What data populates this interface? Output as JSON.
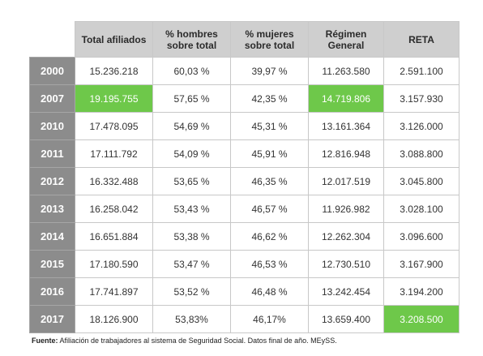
{
  "table": {
    "headers": [
      "Total afiliados",
      "% hombres\nsobre total",
      "% mujeres\nsobre total",
      "Régimen\nGeneral",
      "RETA"
    ],
    "rows": [
      {
        "year": "2000",
        "cells": [
          "15.236.218",
          "60,03 %",
          "39,97 %",
          "11.263.580",
          "2.591.100"
        ],
        "highlight": []
      },
      {
        "year": "2007",
        "cells": [
          "19.195.755",
          "57,65 %",
          "42,35 %",
          "14.719.806",
          "3.157.930"
        ],
        "highlight": [
          0,
          3
        ]
      },
      {
        "year": "2010",
        "cells": [
          "17.478.095",
          "54,69 %",
          "45,31 %",
          "13.161.364",
          "3.126.000"
        ],
        "highlight": []
      },
      {
        "year": "2011",
        "cells": [
          "17.111.792",
          "54,09 %",
          "45,91 %",
          "12.816.948",
          "3.088.800"
        ],
        "highlight": []
      },
      {
        "year": "2012",
        "cells": [
          "16.332.488",
          "53,65 %",
          "46,35 %",
          "12.017.519",
          "3.045.800"
        ],
        "highlight": []
      },
      {
        "year": "2013",
        "cells": [
          "16.258.042",
          "53,43 %",
          "46,57 %",
          "11.926.982",
          "3.028.100"
        ],
        "highlight": []
      },
      {
        "year": "2014",
        "cells": [
          "16.651.884",
          "53,38 %",
          "46,62 %",
          "12.262.304",
          "3.096.600"
        ],
        "highlight": []
      },
      {
        "year": "2015",
        "cells": [
          "17.180.590",
          "53,47 %",
          "46,53 %",
          "12.730.510",
          "3.167.900"
        ],
        "highlight": []
      },
      {
        "year": "2016",
        "cells": [
          "17.741.897",
          "53,52 %",
          "46,48 %",
          "13.242.454",
          "3.194.200"
        ],
        "highlight": []
      },
      {
        "year": "2017",
        "cells": [
          "18.126.900",
          "53,83%",
          "46,17%",
          "13.659.400",
          "3.208.500"
        ],
        "highlight": [
          4
        ]
      }
    ]
  },
  "source": {
    "label": "Fuente:",
    "text": " Afiliación de trabajadores al sistema de Seguridad Social. Datos final de año. MEySS."
  },
  "colors": {
    "header_bg": "#cfcfcf",
    "year_bg": "#8c8c8c",
    "highlight": "#6ec84a"
  }
}
